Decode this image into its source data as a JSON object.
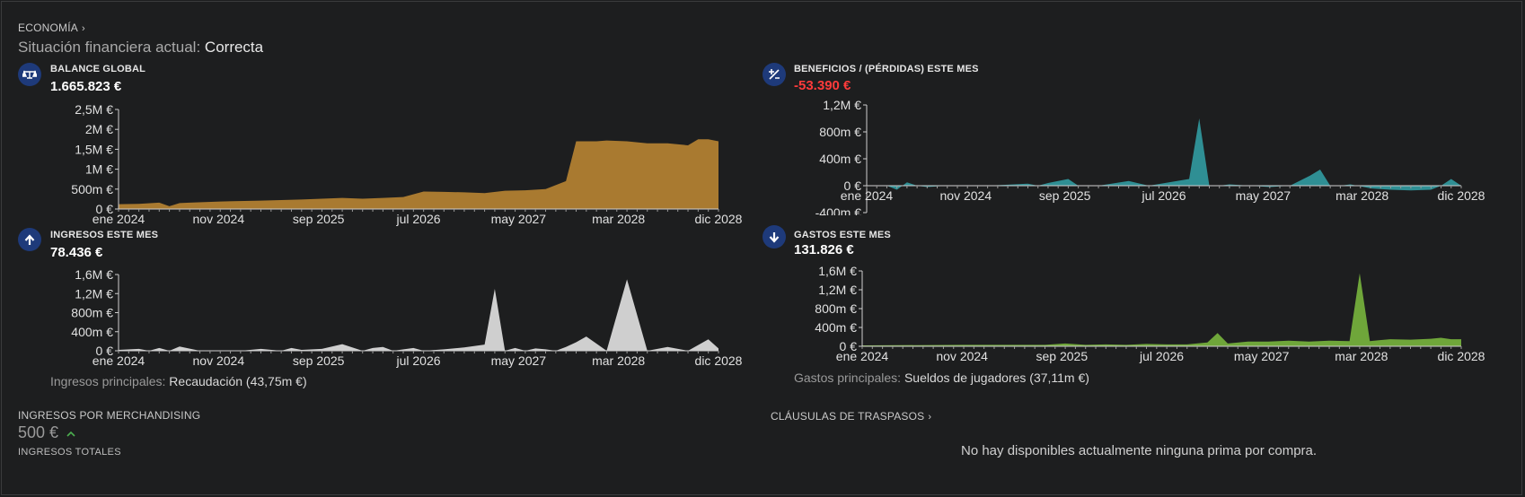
{
  "header": {
    "breadcrumb": "ECONOMÍA",
    "status_prefix": "Situación financiera actual:",
    "status_value": "Correcta"
  },
  "balance": {
    "title": "BALANCE GLOBAL",
    "value": "1.665.823 €",
    "icon": "balance-scale-icon"
  },
  "profit": {
    "title": "BENEFICIOS / (PÉRDIDAS) ESTE MES",
    "value": "-53.390 €",
    "icon": "plus-minus-icon"
  },
  "income": {
    "title": "INGRESOS ESTE MES",
    "value": "78.436 €",
    "icon": "arrow-up-icon",
    "note_label": "Ingresos principales:",
    "note_value": "Recaudación (43,75m €)"
  },
  "expenses": {
    "title": "GASTOS ESTE MES",
    "value": "131.826 €",
    "icon": "arrow-down-icon",
    "note_label": "Gastos principales:",
    "note_value": "Sueldos de jugadores (37,11m €)"
  },
  "merch": {
    "label": "INGRESOS POR MERCHANDISING",
    "value": "500 €",
    "sub": "INGRESOS TOTALES",
    "trend_icon": "chevron-up-icon"
  },
  "transfers": {
    "label": "CLÁUSULAS DE TRASPASOS",
    "empty": "No hay disponibles actualmente ninguna prima por compra."
  },
  "colors": {
    "balance": "#a97a30",
    "profit": "#2f8f94",
    "income": "#cfcfcf",
    "expenses": "#6fa63a",
    "negative": "#ff3b3b",
    "icon_bg": "#1e3a7a"
  },
  "chart_data": [
    {
      "id": "balance",
      "type": "area",
      "x_tick_labels": [
        "ene 2024",
        "nov 2024",
        "sep 2025",
        "jul 2026",
        "may 2027",
        "mar 2028",
        "dic 2028"
      ],
      "y_tick_labels": [
        "0 €",
        "500m €",
        "1M €",
        "1,5M €",
        "2M €",
        "2,5M €"
      ],
      "ylim": [
        0,
        2500000
      ],
      "y_ticks": [
        0,
        500000,
        1000000,
        1500000,
        2000000,
        2500000
      ],
      "x_range": [
        0,
        59
      ],
      "x": [
        0,
        2,
        4,
        5,
        6,
        7,
        10,
        14,
        18,
        22,
        24,
        26,
        28,
        30,
        32,
        34,
        36,
        38,
        40,
        42,
        44,
        45,
        46,
        47,
        48,
        50,
        52,
        54,
        56,
        57,
        58,
        59
      ],
      "values": [
        120000,
        130000,
        160000,
        70000,
        150000,
        160000,
        190000,
        210000,
        240000,
        280000,
        260000,
        280000,
        300000,
        440000,
        430000,
        420000,
        400000,
        460000,
        470000,
        500000,
        700000,
        1700000,
        1700000,
        1700000,
        1720000,
        1700000,
        1650000,
        1650000,
        1600000,
        1750000,
        1750000,
        1700000
      ]
    },
    {
      "id": "profit",
      "type": "area",
      "x_tick_labels": [
        "ene 2024",
        "nov 2024",
        "sep 2025",
        "jul 2026",
        "may 2027",
        "mar 2028",
        "dic 2028"
      ],
      "y_tick_labels": [
        "-400m €",
        "0 €",
        "400m €",
        "800m €",
        "1,2M €"
      ],
      "ylim": [
        -400000,
        1200000
      ],
      "y_ticks": [
        -400000,
        0,
        400000,
        800000,
        1200000
      ],
      "x_range": [
        0,
        59
      ],
      "x": [
        0,
        2,
        3,
        4,
        5,
        6,
        8,
        12,
        16,
        17,
        18,
        20,
        21,
        22,
        23,
        26,
        28,
        30,
        32,
        33,
        34,
        35,
        36,
        38,
        40,
        42,
        44,
        45,
        46,
        47,
        48,
        50,
        52,
        54,
        56,
        57,
        58,
        59
      ],
      "values": [
        0,
        0,
        -60000,
        50000,
        0,
        -20000,
        0,
        0,
        30000,
        0,
        40000,
        100000,
        0,
        0,
        0,
        70000,
        0,
        50000,
        100000,
        1000000,
        0,
        0,
        20000,
        0,
        -20000,
        0,
        150000,
        240000,
        0,
        0,
        20000,
        -40000,
        -60000,
        -70000,
        -60000,
        0,
        100000,
        0
      ]
    },
    {
      "id": "income",
      "type": "area",
      "x_tick_labels": [
        "ene 2024",
        "nov 2024",
        "sep 2025",
        "jul 2026",
        "may 2027",
        "mar 2028",
        "dic 2028"
      ],
      "y_tick_labels": [
        "0 €",
        "400m €",
        "800m €",
        "1,2M €",
        "1,6M €"
      ],
      "ylim": [
        0,
        1600000
      ],
      "y_ticks": [
        0,
        400000,
        800000,
        1200000,
        1600000
      ],
      "x_range": [
        0,
        59
      ],
      "x": [
        0,
        2,
        3,
        4,
        5,
        6,
        8,
        12,
        14,
        16,
        17,
        18,
        20,
        22,
        24,
        25,
        26,
        27,
        29,
        30,
        32,
        34,
        36,
        37,
        38,
        39,
        40,
        41,
        42,
        43,
        44,
        45,
        46,
        48,
        50,
        52,
        54,
        56,
        57,
        58,
        59
      ],
      "values": [
        20000,
        40000,
        0,
        60000,
        0,
        90000,
        0,
        0,
        40000,
        0,
        60000,
        20000,
        40000,
        140000,
        0,
        60000,
        80000,
        0,
        60000,
        0,
        30000,
        70000,
        130000,
        1300000,
        0,
        60000,
        0,
        50000,
        30000,
        0,
        80000,
        180000,
        300000,
        0,
        1500000,
        0,
        80000,
        0,
        120000,
        240000,
        50000
      ]
    },
    {
      "id": "expenses",
      "type": "area",
      "x_tick_labels": [
        "ene 2024",
        "nov 2024",
        "sep 2025",
        "jul 2026",
        "may 2027",
        "mar 2028",
        "dic 2028"
      ],
      "y_tick_labels": [
        "0 €",
        "400m €",
        "800m €",
        "1,2M €",
        "1,6M €"
      ],
      "ylim": [
        0,
        1600000
      ],
      "y_ticks": [
        0,
        400000,
        800000,
        1200000,
        1600000
      ],
      "x_range": [
        0,
        59
      ],
      "x": [
        0,
        10,
        18,
        20,
        22,
        24,
        26,
        28,
        30,
        32,
        34,
        35,
        36,
        38,
        40,
        42,
        44,
        46,
        48,
        49,
        50,
        51,
        52,
        54,
        56,
        57,
        58,
        59
      ],
      "values": [
        20000,
        30000,
        30000,
        60000,
        30000,
        40000,
        30000,
        50000,
        40000,
        40000,
        80000,
        280000,
        60000,
        100000,
        100000,
        120000,
        100000,
        120000,
        110000,
        1550000,
        110000,
        130000,
        150000,
        140000,
        160000,
        180000,
        150000,
        150000
      ]
    }
  ]
}
